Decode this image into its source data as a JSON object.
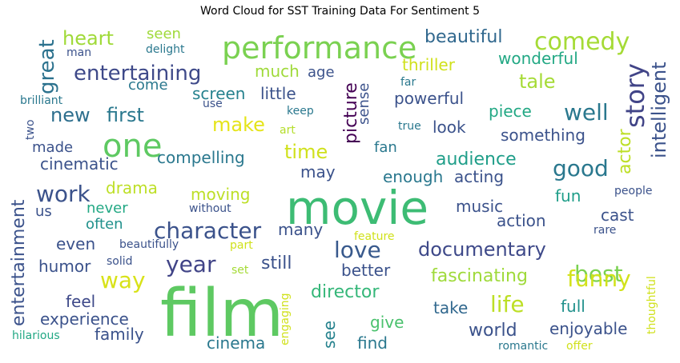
{
  "chart_data": {
    "type": "wordcloud",
    "title": "Word Cloud for SST Training Data For Sentiment 5",
    "words": [
      {
        "text": "film",
        "weight": 100,
        "color": "#5ec962"
      },
      {
        "text": "movie",
        "weight": 80,
        "color": "#3dbc74"
      },
      {
        "text": "performance",
        "weight": 55,
        "color": "#7ad151"
      },
      {
        "text": "one",
        "weight": 60,
        "color": "#5ec962"
      },
      {
        "text": "story",
        "weight": 42,
        "color": "#414487"
      },
      {
        "text": "comedy",
        "weight": 42,
        "color": "#a5db36"
      },
      {
        "text": "character",
        "weight": 40,
        "color": "#3b528b"
      },
      {
        "text": "work",
        "weight": 40,
        "color": "#3b528b"
      },
      {
        "text": "year",
        "weight": 40,
        "color": "#414487"
      },
      {
        "text": "life",
        "weight": 40,
        "color": "#bddf26"
      },
      {
        "text": "best",
        "weight": 40,
        "color": "#7ad151"
      },
      {
        "text": "funny",
        "weight": 40,
        "color": "#d2e21b"
      },
      {
        "text": "good",
        "weight": 40,
        "color": "#2a788e"
      },
      {
        "text": "well",
        "weight": 40,
        "color": "#2a788e"
      },
      {
        "text": "love",
        "weight": 40,
        "color": "#38598c"
      },
      {
        "text": "way",
        "weight": 40,
        "color": "#d8e219"
      },
      {
        "text": "entertaining",
        "weight": 38,
        "color": "#3e4989"
      },
      {
        "text": "great",
        "weight": 36,
        "color": "#2c728e"
      },
      {
        "text": "intelligent",
        "weight": 34,
        "color": "#3b528b"
      },
      {
        "text": "documentary",
        "weight": 33,
        "color": "#3e4989"
      },
      {
        "text": "heart",
        "weight": 33,
        "color": "#a0da39"
      },
      {
        "text": "tale",
        "weight": 33,
        "color": "#a5db36"
      },
      {
        "text": "make",
        "weight": 33,
        "color": "#e5e419"
      },
      {
        "text": "time",
        "weight": 33,
        "color": "#d0e11c"
      },
      {
        "text": "first",
        "weight": 33,
        "color": "#2a788e"
      },
      {
        "text": "new",
        "weight": 33,
        "color": "#2e6f8e"
      },
      {
        "text": "beautiful",
        "weight": 30,
        "color": "#31688e"
      },
      {
        "text": "still",
        "weight": 30,
        "color": "#3b528b"
      },
      {
        "text": "director",
        "weight": 30,
        "color": "#35b779"
      },
      {
        "text": "fascinating",
        "weight": 30,
        "color": "#9fda3a"
      },
      {
        "text": "entertainment",
        "weight": 30,
        "color": "#3b528b"
      },
      {
        "text": "world",
        "weight": 30,
        "color": "#3b528b"
      },
      {
        "text": "audience",
        "weight": 30,
        "color": "#1f9e89"
      },
      {
        "text": "actor",
        "weight": 30,
        "color": "#bddf26"
      },
      {
        "text": "picture",
        "weight": 30,
        "color": "#440154"
      },
      {
        "text": "much",
        "weight": 28,
        "color": "#9fda3a"
      },
      {
        "text": "moving",
        "weight": 28,
        "color": "#bddf26"
      },
      {
        "text": "compelling",
        "weight": 28,
        "color": "#2a788e"
      },
      {
        "text": "cast",
        "weight": 28,
        "color": "#3b528b"
      },
      {
        "text": "take",
        "weight": 28,
        "color": "#31688e"
      },
      {
        "text": "give",
        "weight": 28,
        "color": "#4ac16d"
      },
      {
        "text": "feel",
        "weight": 28,
        "color": "#3e4989"
      },
      {
        "text": "full",
        "weight": 28,
        "color": "#21918c"
      },
      {
        "text": "see",
        "weight": 28,
        "color": "#26828e"
      },
      {
        "text": "enjoyable",
        "weight": 28,
        "color": "#3b528b"
      },
      {
        "text": "experience",
        "weight": 26,
        "color": "#3b528b"
      },
      {
        "text": "humor",
        "weight": 26,
        "color": "#3b528b"
      },
      {
        "text": "family",
        "weight": 26,
        "color": "#3b528b"
      },
      {
        "text": "cinematic",
        "weight": 26,
        "color": "#3b528b"
      },
      {
        "text": "little",
        "weight": 26,
        "color": "#3b528b"
      },
      {
        "text": "screen",
        "weight": 26,
        "color": "#26828e"
      },
      {
        "text": "piece",
        "weight": 26,
        "color": "#22a884"
      },
      {
        "text": "something",
        "weight": 26,
        "color": "#3b528b"
      },
      {
        "text": "fun",
        "weight": 26,
        "color": "#1f9e89"
      },
      {
        "text": "music",
        "weight": 26,
        "color": "#3b528b"
      },
      {
        "text": "action",
        "weight": 26,
        "color": "#3b528b"
      },
      {
        "text": "acting",
        "weight": 26,
        "color": "#3b528b"
      },
      {
        "text": "enough",
        "weight": 26,
        "color": "#2a788e"
      },
      {
        "text": "may",
        "weight": 26,
        "color": "#3b528b"
      },
      {
        "text": "powerful",
        "weight": 26,
        "color": "#3b528b"
      },
      {
        "text": "thriller",
        "weight": 26,
        "color": "#d0e11c"
      },
      {
        "text": "wonderful",
        "weight": 26,
        "color": "#22a884"
      },
      {
        "text": "look",
        "weight": 26,
        "color": "#3b528b"
      },
      {
        "text": "drama",
        "weight": 26,
        "color": "#bddf26"
      },
      {
        "text": "better",
        "weight": 26,
        "color": "#3b528b"
      },
      {
        "text": "cinema",
        "weight": 26,
        "color": "#2a788e"
      },
      {
        "text": "find",
        "weight": 26,
        "color": "#2a788e"
      },
      {
        "text": "even",
        "weight": 26,
        "color": "#3b528b"
      },
      {
        "text": "many",
        "weight": 24,
        "color": "#3b528b"
      },
      {
        "text": "made",
        "weight": 24,
        "color": "#3b528b"
      },
      {
        "text": "come",
        "weight": 24,
        "color": "#2a788e"
      },
      {
        "text": "age",
        "weight": 24,
        "color": "#3b528b"
      },
      {
        "text": "sense",
        "weight": 24,
        "color": "#3b528b"
      },
      {
        "text": "fan",
        "weight": 24,
        "color": "#2a788e"
      },
      {
        "text": "seen",
        "weight": 24,
        "color": "#9fda3a"
      },
      {
        "text": "us",
        "weight": 24,
        "color": "#3b528b"
      },
      {
        "text": "never",
        "weight": 22,
        "color": "#22a884"
      },
      {
        "text": "often",
        "weight": 22,
        "color": "#21918c"
      },
      {
        "text": "engaging",
        "weight": 18,
        "color": "#d0e11c"
      },
      {
        "text": "thoughtful",
        "weight": 18,
        "color": "#d0e11c"
      },
      {
        "text": "brilliant",
        "weight": 16,
        "color": "#2a788e"
      },
      {
        "text": "delight",
        "weight": 16,
        "color": "#2a788e"
      },
      {
        "text": "man",
        "weight": 16,
        "color": "#3b528b"
      },
      {
        "text": "two",
        "weight": 16,
        "color": "#3b528b"
      },
      {
        "text": "use",
        "weight": 16,
        "color": "#3b528b"
      },
      {
        "text": "keep",
        "weight": 16,
        "color": "#2a788e"
      },
      {
        "text": "art",
        "weight": 16,
        "color": "#b5de2b"
      },
      {
        "text": "far",
        "weight": 16,
        "color": "#2a788e"
      },
      {
        "text": "true",
        "weight": 16,
        "color": "#2a788e"
      },
      {
        "text": "without",
        "weight": 16,
        "color": "#3b528b"
      },
      {
        "text": "part",
        "weight": 16,
        "color": "#d0e11c"
      },
      {
        "text": "beautifully",
        "weight": 16,
        "color": "#3b528b"
      },
      {
        "text": "solid",
        "weight": 16,
        "color": "#3b528b"
      },
      {
        "text": "set",
        "weight": 16,
        "color": "#a5db36"
      },
      {
        "text": "feature",
        "weight": 16,
        "color": "#d0e11c"
      },
      {
        "text": "rare",
        "weight": 16,
        "color": "#3b528b"
      },
      {
        "text": "people",
        "weight": 16,
        "color": "#3b528b"
      },
      {
        "text": "hilarious",
        "weight": 16,
        "color": "#22a884"
      },
      {
        "text": "romantic",
        "weight": 16,
        "color": "#2a788e"
      },
      {
        "text": "offer",
        "weight": 16,
        "color": "#d0e11c"
      }
    ]
  }
}
